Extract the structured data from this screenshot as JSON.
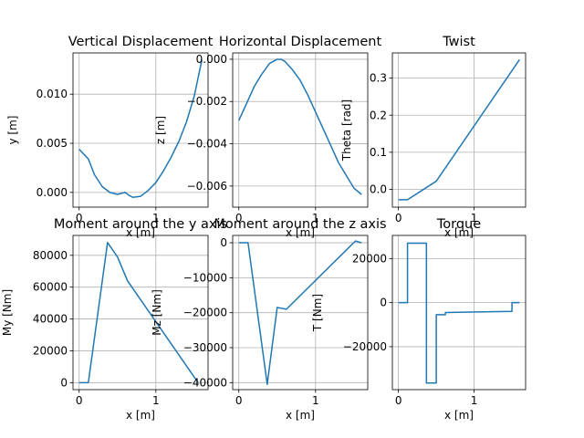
{
  "chart_data": [
    {
      "type": "line",
      "title": "Vertical Displacement",
      "xlabel": "x [m]",
      "ylabel": "y [m]",
      "xlim": [
        -0.08,
        1.68
      ],
      "ylim": [
        -0.0015,
        0.0142
      ],
      "xticks": [
        0,
        1
      ],
      "xtick_labels": [
        "0",
        "1"
      ],
      "yticks": [
        0,
        0.005,
        0.01
      ],
      "ytick_labels": [
        "0.000",
        "0.005",
        "0.010"
      ],
      "grid": true,
      "color": "#1f77b4",
      "series": [
        {
          "x": [
            0,
            0.12,
            0.2,
            0.3,
            0.4,
            0.5,
            0.6,
            0.65,
            0.7,
            0.8,
            0.9,
            1.0,
            1.1,
            1.2,
            1.3,
            1.4,
            1.5,
            1.6
          ],
          "y": [
            0.0044,
            0.0034,
            0.0018,
            0.0006,
            0.0,
            -0.0002,
            0.0,
            -0.0003,
            -0.0005,
            -0.0004,
            0.0002,
            0.001,
            0.0022,
            0.0036,
            0.0052,
            0.0072,
            0.0098,
            0.0135
          ]
        }
      ]
    },
    {
      "type": "line",
      "title": "Horizontal Displacement",
      "xlabel": "x [m]",
      "ylabel": "z [m]",
      "xlim": [
        -0.08,
        1.68
      ],
      "ylim": [
        -0.007,
        0.0003
      ],
      "xticks": [
        0,
        1
      ],
      "xtick_labels": [
        "0",
        "1"
      ],
      "yticks": [
        0,
        -0.002,
        -0.004,
        -0.006
      ],
      "ytick_labels": [
        "0.000",
        "−0.002",
        "−0.004",
        "−0.006"
      ],
      "grid": true,
      "color": "#1f77b4",
      "series": [
        {
          "x": [
            0,
            0.1,
            0.2,
            0.3,
            0.4,
            0.5,
            0.55,
            0.6,
            0.7,
            0.8,
            0.9,
            1.0,
            1.1,
            1.2,
            1.3,
            1.4,
            1.5,
            1.6
          ],
          "y": [
            -0.0029,
            -0.0021,
            -0.0013,
            -0.0007,
            -0.0002,
            0.0,
            0.0,
            -0.0001,
            -0.0005,
            -0.001,
            -0.0017,
            -0.0025,
            -0.0033,
            -0.0041,
            -0.0049,
            -0.0055,
            -0.0061,
            -0.0064
          ]
        }
      ]
    },
    {
      "type": "line",
      "title": "Twist",
      "xlabel": "x [m]",
      "ylabel": "Theta [rad]",
      "xlim": [
        -0.08,
        1.68
      ],
      "ylim": [
        -0.048,
        0.368
      ],
      "xticks": [
        0,
        1
      ],
      "xtick_labels": [
        "0",
        "1"
      ],
      "yticks": [
        0,
        0.1,
        0.2,
        0.3
      ],
      "ytick_labels": [
        "0.0",
        "0.1",
        "0.2",
        "0.3"
      ],
      "grid": true,
      "color": "#1f77b4",
      "series": [
        {
          "x": [
            0,
            0.12,
            0.5,
            1.6
          ],
          "y": [
            -0.028,
            -0.028,
            0.022,
            0.35
          ]
        }
      ]
    },
    {
      "type": "line",
      "title": "Moment around the y axis",
      "xlabel": "x [m]",
      "ylabel": "My [Nm]",
      "xlim": [
        -0.08,
        1.68
      ],
      "ylim": [
        -4400,
        92500
      ],
      "xticks": [
        0,
        1
      ],
      "xtick_labels": [
        "0",
        "1"
      ],
      "yticks": [
        0,
        20000,
        40000,
        60000,
        80000
      ],
      "ytick_labels": [
        "0",
        "20000",
        "40000",
        "60000",
        "80000"
      ],
      "grid": true,
      "color": "#1f77b4",
      "series": [
        {
          "x": [
            0,
            0.12,
            0.37,
            0.5,
            0.63,
            1.55
          ],
          "y": [
            0,
            0,
            88000,
            79000,
            64000,
            0
          ]
        }
      ]
    },
    {
      "type": "line",
      "title": "Moment around the z axis",
      "xlabel": "x [m]",
      "ylabel": "Mz [Nm]",
      "xlim": [
        -0.08,
        1.68
      ],
      "ylim": [
        -42000,
        2100
      ],
      "xticks": [
        0,
        1
      ],
      "xtick_labels": [
        "0",
        "1"
      ],
      "yticks": [
        0,
        -10000,
        -20000,
        -30000,
        -40000
      ],
      "ytick_labels": [
        "0",
        "−10000",
        "−20000",
        "−30000",
        "−40000"
      ],
      "grid": true,
      "color": "#1f77b4",
      "series": [
        {
          "x": [
            0,
            0.12,
            0.37,
            0.5,
            0.62,
            1.52,
            1.6
          ],
          "y": [
            0,
            0,
            -40500,
            -18500,
            -19000,
            500,
            0
          ]
        }
      ]
    },
    {
      "type": "line",
      "title": "Torque",
      "xlabel": "x [m]",
      "ylabel": "T [Nm]",
      "xlim": [
        -0.08,
        1.68
      ],
      "ylim": [
        -39500,
        30500
      ],
      "xticks": [
        0,
        1
      ],
      "xtick_labels": [
        "0",
        "1"
      ],
      "yticks": [
        -20000,
        0,
        20000
      ],
      "ytick_labels": [
        "−20000",
        "0",
        "20000"
      ],
      "grid": true,
      "color": "#1f77b4",
      "series": [
        {
          "x": [
            0,
            0.12,
            0.12,
            0.37,
            0.37,
            0.5,
            0.5,
            0.62,
            0.62,
            1.5,
            1.5,
            1.6
          ],
          "y": [
            0,
            0,
            27000,
            27000,
            -36500,
            -36500,
            -5500,
            -5500,
            -4500,
            -4000,
            0,
            0
          ]
        }
      ]
    }
  ]
}
